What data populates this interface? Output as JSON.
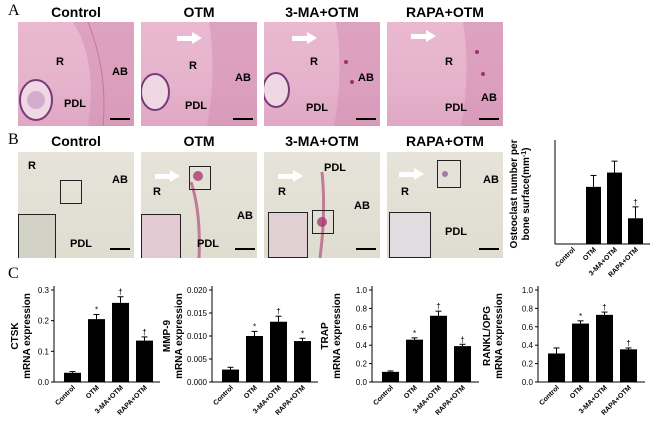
{
  "panel_A": {
    "label": "A",
    "conditions": [
      "Control",
      "OTM",
      "3-MA+OTM",
      "RAPA+OTM"
    ],
    "region_labels": {
      "root": "R",
      "periodontal_ligament": "PDL",
      "alveolar_bone": "AB"
    }
  },
  "panel_B": {
    "label": "B",
    "conditions": [
      "Control",
      "OTM",
      "3-MA+OTM",
      "RAPA+OTM"
    ],
    "region_labels": {
      "root": "R",
      "periodontal_ligament": "PDL",
      "alveolar_bone": "AB"
    }
  },
  "panel_C": {
    "label": "C"
  },
  "chart_data": [
    {
      "type": "bar",
      "ylabel_line1": "Osteoclast number per",
      "ylabel_line2": "bone surface(mm",
      "ylabel_sup": "-1",
      "ylabel_close": ")",
      "categories": [
        "Control",
        "OTM",
        "3-MA+OTM",
        "RAPA+OTM"
      ],
      "values": [
        0,
        4.0,
        5.0,
        1.8
      ],
      "errors": [
        0,
        0.8,
        0.8,
        0.8
      ],
      "ylim": [
        0,
        7
      ],
      "significance": [
        "",
        "",
        "",
        "†"
      ],
      "ticks": []
    },
    {
      "type": "bar",
      "ylabel_line1": "CTSK",
      "ylabel_line2": "mRNA expression",
      "categories": [
        "Control",
        "OTM",
        "3-MA+OTM",
        "RAPA+OTM"
      ],
      "values": [
        0.03,
        0.205,
        0.258,
        0.135
      ],
      "errors": [
        0.004,
        0.015,
        0.02,
        0.012
      ],
      "ylim": [
        0,
        0.3
      ],
      "ticks": [
        "0.0",
        "0.1",
        "0.2",
        "0.3"
      ],
      "significance": [
        "",
        "*",
        "†",
        "†"
      ]
    },
    {
      "type": "bar",
      "ylabel_line1": "MMP-9",
      "ylabel_line2": "mRNA expression",
      "categories": [
        "Control",
        "OTM",
        "3-MA+OTM",
        "RAPA+OTM"
      ],
      "values": [
        0.0027,
        0.01,
        0.0131,
        0.0089
      ],
      "errors": [
        0.0005,
        0.001,
        0.0012,
        0.0006
      ],
      "ylim": [
        0,
        0.02
      ],
      "ticks": [
        "0.000",
        "0.005",
        "0.010",
        "0.015",
        "0.020"
      ],
      "significance": [
        "",
        "*",
        "†",
        "*"
      ]
    },
    {
      "type": "bar",
      "ylabel_line1": "TRAP",
      "ylabel_line2": "mRNA expression",
      "categories": [
        "Control",
        "OTM",
        "3-MA+OTM",
        "RAPA+OTM"
      ],
      "values": [
        0.11,
        0.46,
        0.72,
        0.39
      ],
      "errors": [
        0.01,
        0.02,
        0.05,
        0.02
      ],
      "ylim": [
        0,
        1.0
      ],
      "ticks": [
        "0.0",
        "0.2",
        "0.4",
        "0.6",
        "0.8",
        "1.0"
      ],
      "significance": [
        "",
        "*",
        "†",
        "†"
      ]
    },
    {
      "type": "bar",
      "ylabel_line1": "RANKL/OPG",
      "ylabel_line2": "mRNA expression",
      "categories": [
        "Control",
        "OTM",
        "3-MA+OTM",
        "RAPA+OTM"
      ],
      "values": [
        0.31,
        0.635,
        0.73,
        0.355
      ],
      "errors": [
        0.06,
        0.03,
        0.03,
        0.015
      ],
      "ylim": [
        0,
        1.0
      ],
      "ticks": [
        "0.0",
        "0.2",
        "0.4",
        "0.6",
        "0.8",
        "1.0"
      ],
      "significance": [
        "",
        "*",
        "†",
        "†"
      ]
    }
  ]
}
